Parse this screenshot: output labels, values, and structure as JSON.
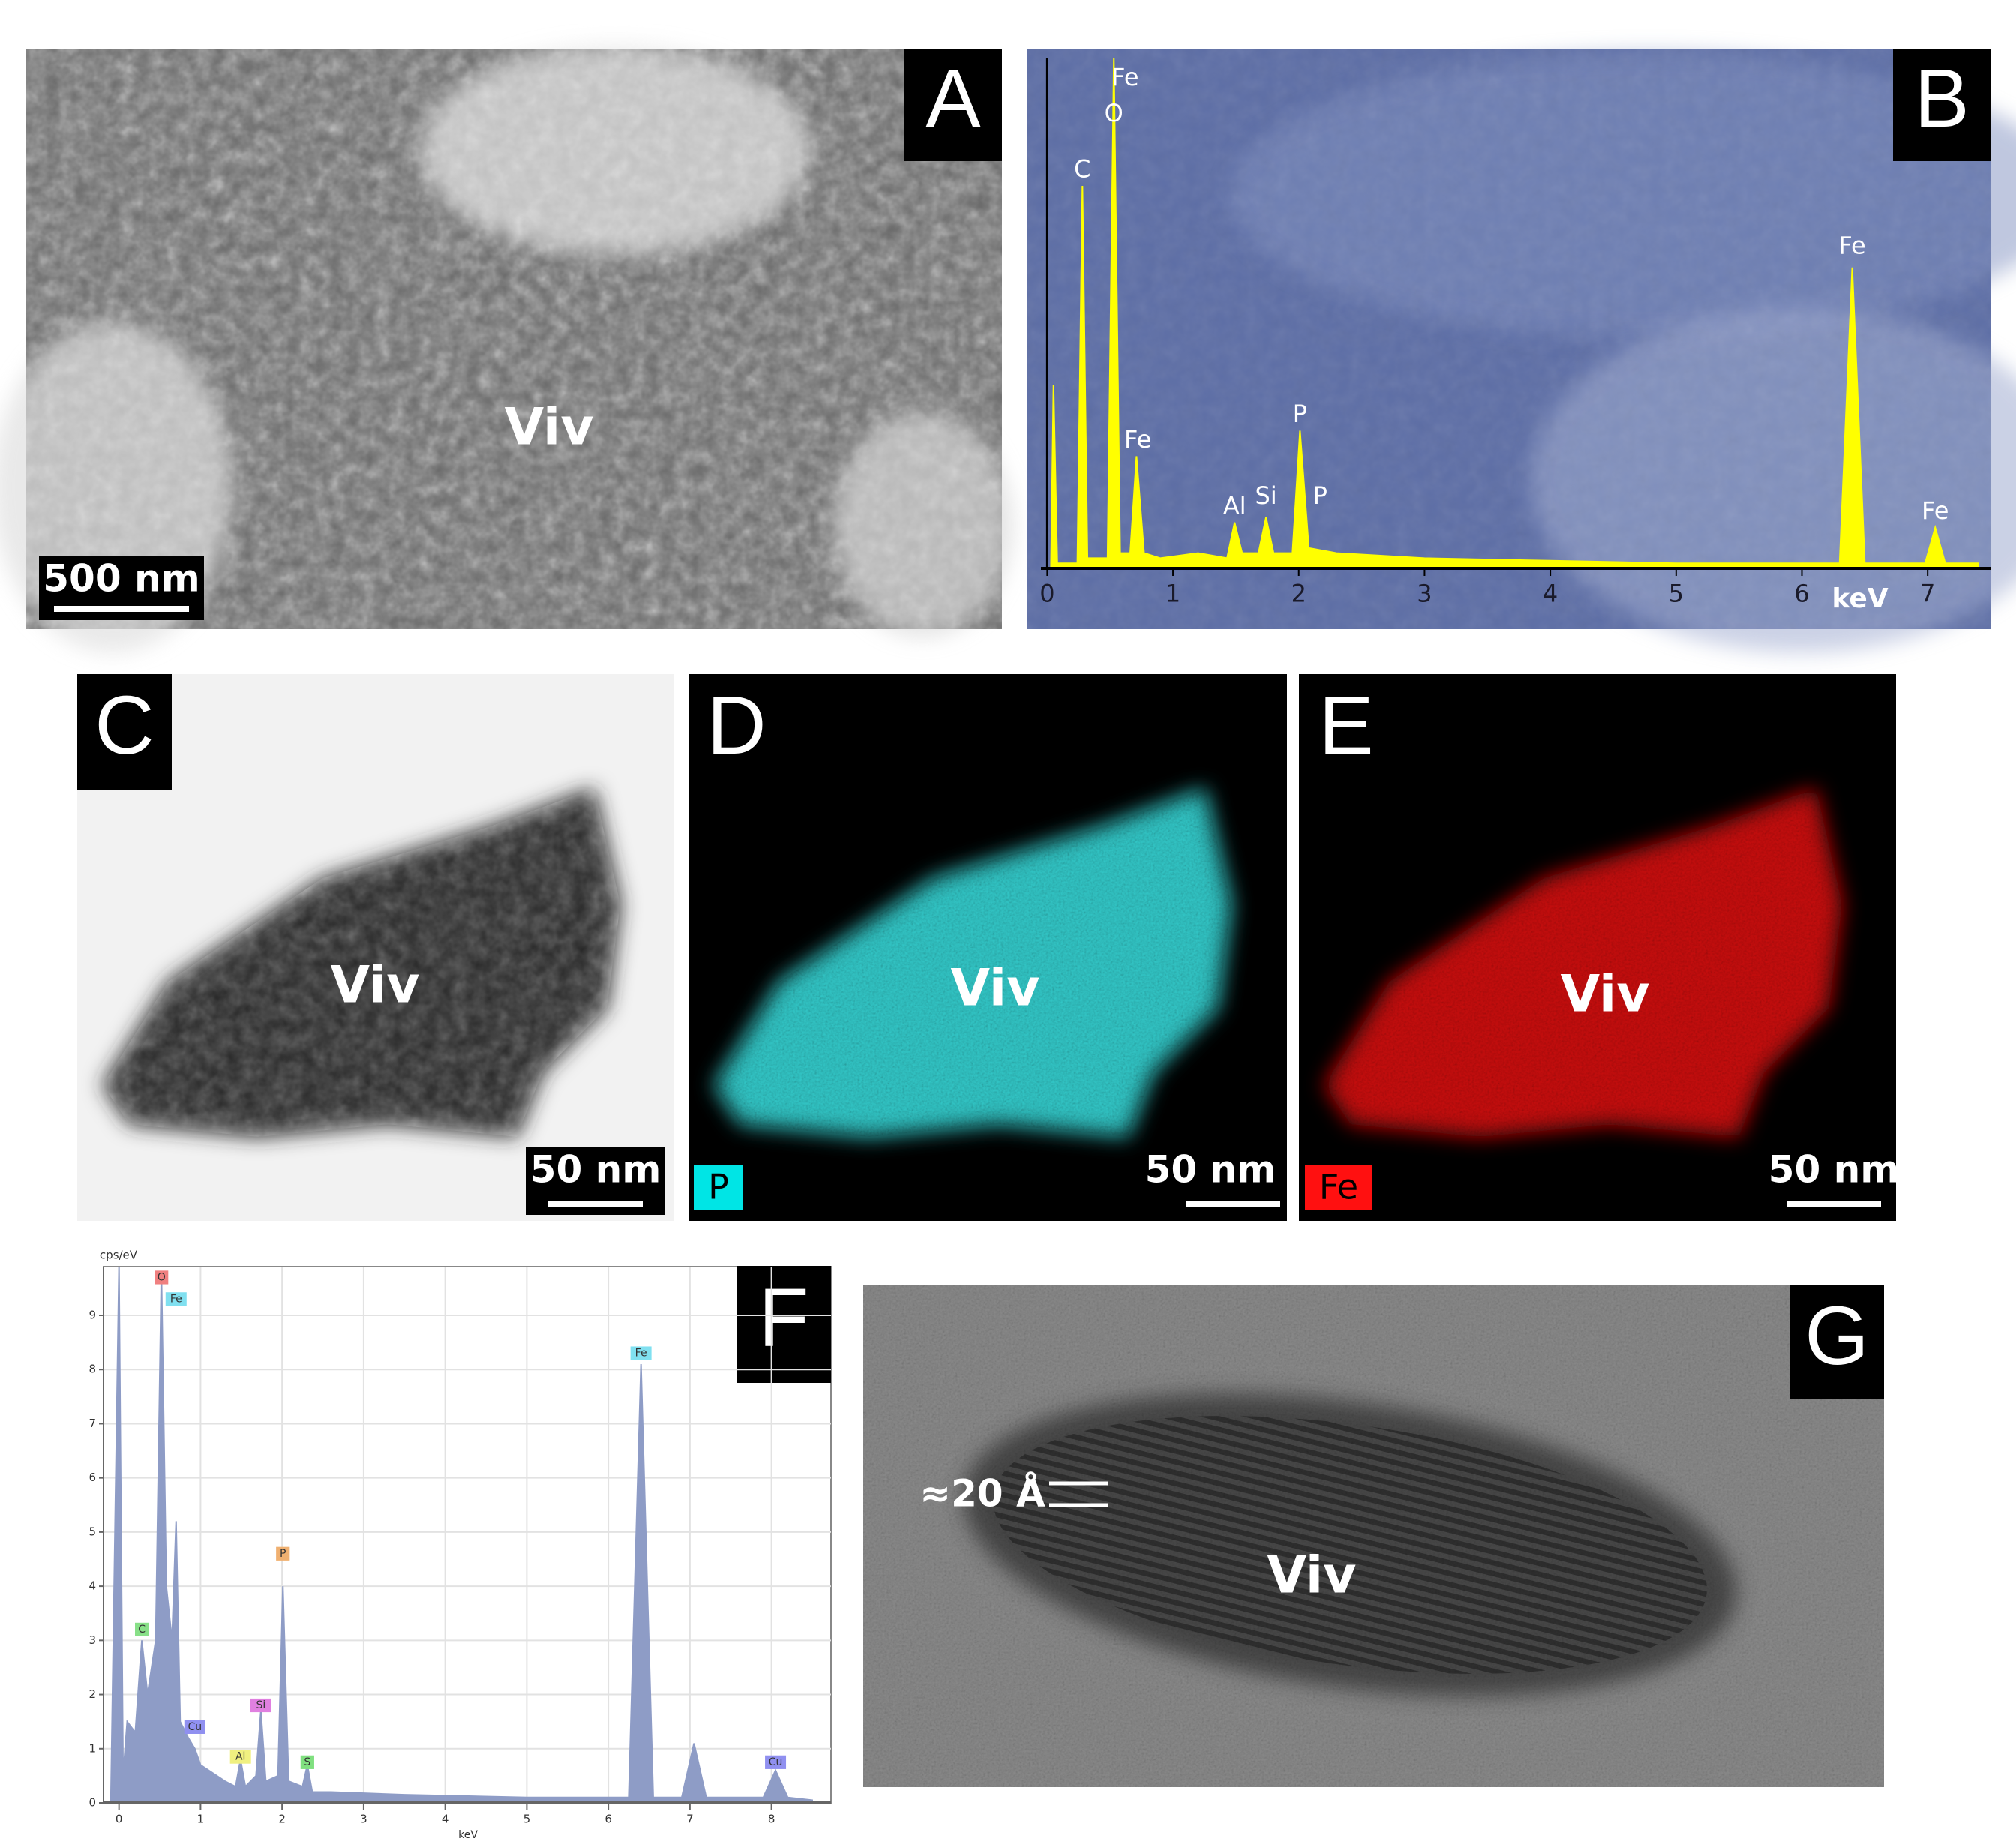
{
  "panels": [
    {
      "letter": "A",
      "label": "Viv",
      "scale_bar": "500 nm"
    },
    {
      "letter": "B"
    },
    {
      "letter": "C",
      "label": "Viv",
      "scale_bar": "50 nm"
    },
    {
      "letter": "D",
      "label": "Viv",
      "scale_bar": "50 nm",
      "element": "P"
    },
    {
      "letter": "E",
      "label": "Viv",
      "scale_bar": "50 nm",
      "element": "Fe"
    },
    {
      "letter": "F"
    },
    {
      "letter": "G",
      "label": "Viv",
      "spacing": "≈20 Å"
    }
  ],
  "chart_data": [
    {
      "type": "area",
      "color": "#ffff00",
      "x": [
        0,
        0.03,
        0.05,
        0.08,
        0.24,
        0.28,
        0.32,
        0.48,
        0.53,
        0.58,
        0.66,
        0.71,
        0.77,
        0.9,
        1.2,
        1.43,
        1.49,
        1.55,
        1.68,
        1.74,
        1.8,
        1.95,
        2.01,
        2.08,
        2.3,
        3,
        4,
        5,
        6.3,
        6.4,
        6.5,
        6.98,
        7.06,
        7.14,
        7.4
      ],
      "values": [
        0,
        0,
        36,
        1,
        1,
        75,
        2,
        2,
        100,
        3,
        3,
        22,
        3,
        2,
        3,
        2,
        9,
        3,
        3,
        10,
        3,
        3,
        27,
        4,
        3,
        2,
        1.5,
        1,
        1,
        59,
        1,
        1,
        8,
        1,
        1
      ],
      "xlim": [
        -0.05,
        7.5
      ],
      "ylim": [
        0,
        100
      ],
      "xticks": [
        0,
        1,
        2,
        3,
        4,
        5,
        6,
        7
      ],
      "x_label": "keV",
      "annotations": [
        {
          "text": "C",
          "x": 0.28,
          "y": 78
        },
        {
          "text": "O",
          "x": 0.53,
          "y": 89
        },
        {
          "text": "Fe",
          "x": 0.62,
          "y": 96
        },
        {
          "text": "Fe",
          "x": 0.72,
          "y": 25
        },
        {
          "text": "Al",
          "x": 1.49,
          "y": 12
        },
        {
          "text": "Si",
          "x": 1.74,
          "y": 14
        },
        {
          "text": "P",
          "x": 2.01,
          "y": 30
        },
        {
          "text": "P",
          "x": 2.17,
          "y": 14
        },
        {
          "text": "Fe",
          "x": 6.4,
          "y": 63
        },
        {
          "text": "Fe",
          "x": 7.06,
          "y": 11
        }
      ]
    },
    {
      "type": "area",
      "color": "#8e9cc6",
      "x": [
        -0.1,
        0,
        0.05,
        0.1,
        0.2,
        0.28,
        0.35,
        0.45,
        0.52,
        0.58,
        0.65,
        0.7,
        0.75,
        0.85,
        0.93,
        1.0,
        1.3,
        1.43,
        1.49,
        1.55,
        1.68,
        1.74,
        1.8,
        1.95,
        2.01,
        2.08,
        2.25,
        2.31,
        2.37,
        2.6,
        3.5,
        5,
        6.25,
        6.4,
        6.55,
        6.9,
        7.05,
        7.2,
        7.9,
        8.05,
        8.2,
        8.5
      ],
      "values": [
        0,
        9.9,
        0.5,
        1.5,
        1.3,
        3,
        2,
        3,
        9.8,
        4,
        3,
        5.2,
        1.5,
        1.2,
        1,
        0.7,
        0.4,
        0.3,
        0.8,
        0.3,
        0.5,
        1.7,
        0.4,
        0.5,
        4,
        0.4,
        0.3,
        0.7,
        0.2,
        0.2,
        0.15,
        0.1,
        0.1,
        8.1,
        0.1,
        0.1,
        1.1,
        0.1,
        0.1,
        0.6,
        0.1,
        0.05
      ],
      "xlim": [
        -0.19,
        8.73
      ],
      "ylim": [
        0,
        9.9
      ],
      "xticks": [
        0,
        1,
        2,
        3,
        4,
        5,
        6,
        7,
        8
      ],
      "yticks": [
        0,
        1,
        2,
        3,
        4,
        5,
        6,
        7,
        8,
        9
      ],
      "grid": true,
      "x_label": "keV",
      "y_label": "cps/eV",
      "annotations": [
        {
          "text": "C",
          "x": 0.28,
          "y": 3.2,
          "color": "#88e088"
        },
        {
          "text": "O",
          "x": 0.52,
          "y": 9.7,
          "color": "#f08080"
        },
        {
          "text": "Fe",
          "x": 0.7,
          "y": 9.3,
          "color": "#80e0f0"
        },
        {
          "text": "Cu",
          "x": 0.93,
          "y": 1.4,
          "color": "#9090f0"
        },
        {
          "text": "Al",
          "x": 1.49,
          "y": 0.85,
          "color": "#f0f080"
        },
        {
          "text": "Si",
          "x": 1.74,
          "y": 1.8,
          "color": "#e080e0"
        },
        {
          "text": "P",
          "x": 2.01,
          "y": 4.6,
          "color": "#f0b070"
        },
        {
          "text": "S",
          "x": 2.31,
          "y": 0.75,
          "color": "#80e080"
        },
        {
          "text": "Fe",
          "x": 6.4,
          "y": 8.3,
          "color": "#80e0f0"
        },
        {
          "text": "Cu",
          "x": 8.05,
          "y": 0.75,
          "color": "#9090f0"
        }
      ]
    }
  ]
}
